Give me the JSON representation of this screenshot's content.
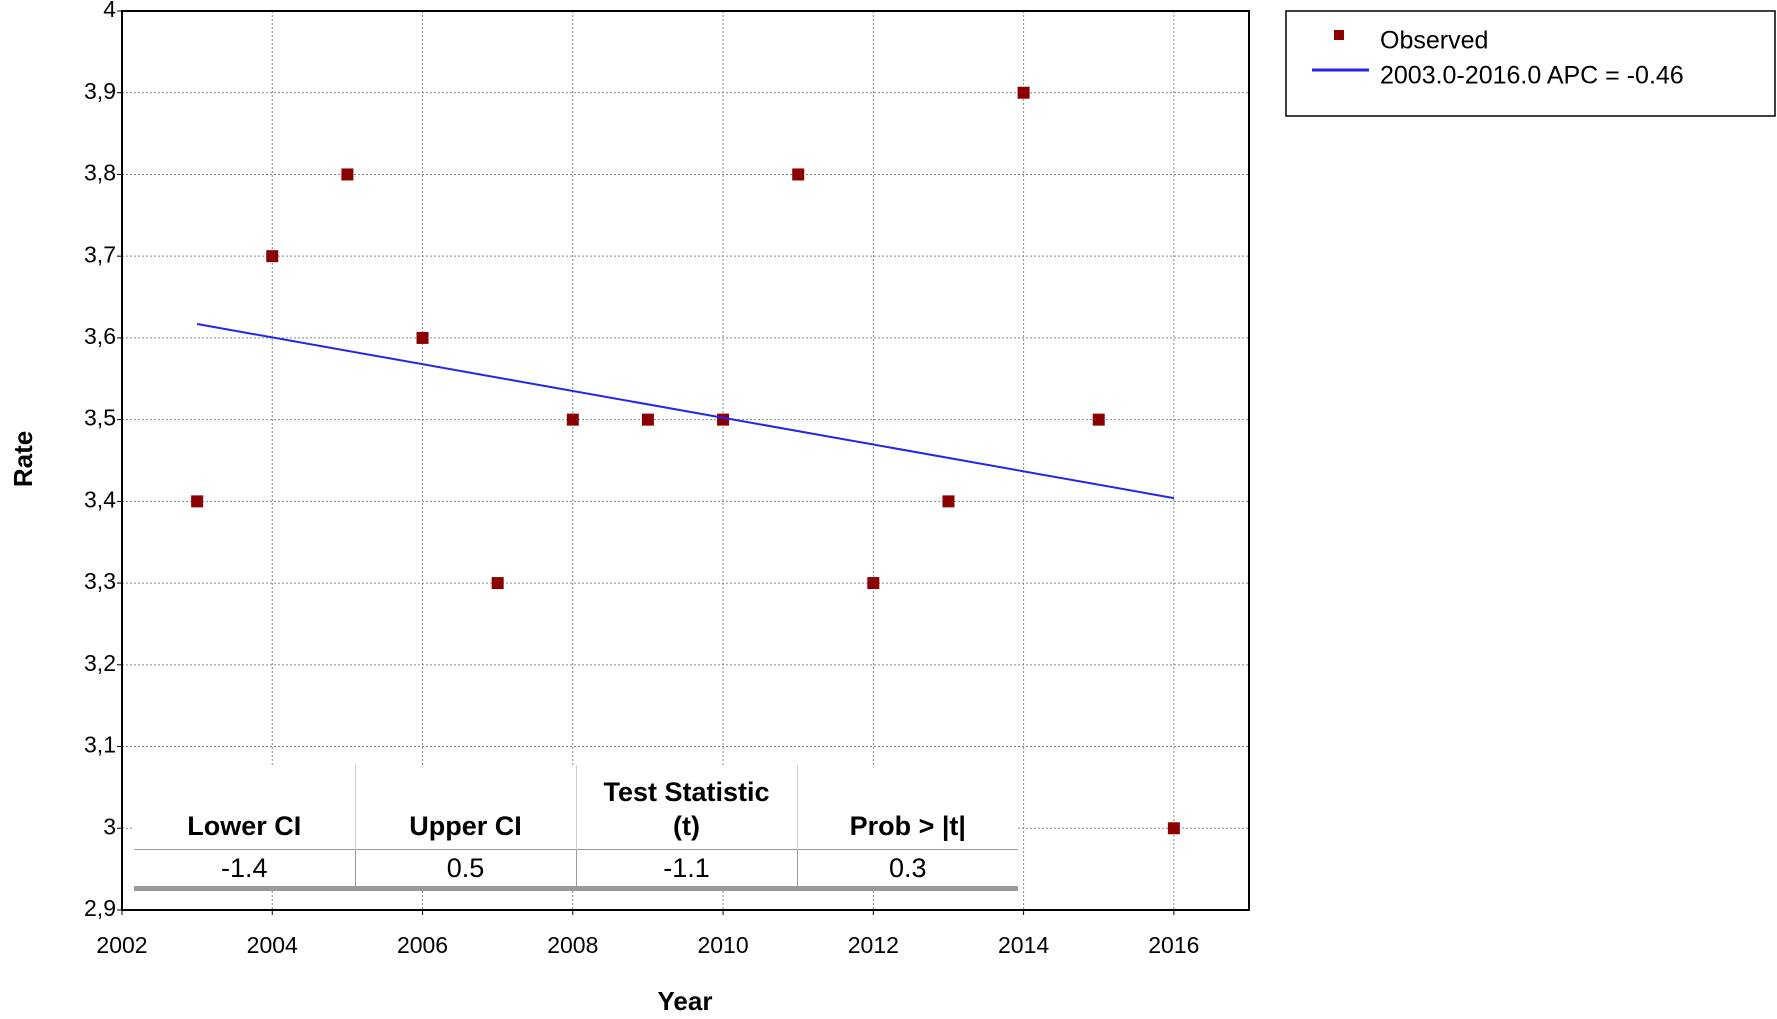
{
  "chart_data": {
    "type": "scatter",
    "x_label": "Year",
    "y_label": "Rate",
    "xlim": [
      2002,
      2017
    ],
    "xticks": [
      2002,
      2004,
      2006,
      2008,
      2010,
      2012,
      2014,
      2016
    ],
    "ylim": [
      2.9,
      4
    ],
    "yticks": [
      {
        "value": 2.9,
        "label": "2,9"
      },
      3,
      {
        "value": 3.1,
        "label": "3,1"
      },
      {
        "value": 3.2,
        "label": "3,2"
      },
      {
        "value": 3.3,
        "label": "3,3"
      },
      {
        "value": 3.4,
        "label": "3,4"
      },
      {
        "value": 3.5,
        "label": "3,5"
      },
      {
        "value": 3.6,
        "label": "3,6"
      },
      {
        "value": 3.7,
        "label": "3,7"
      },
      {
        "value": 3.8,
        "label": "3,8"
      },
      {
        "value": 3.9,
        "label": "3,9"
      },
      4
    ],
    "grid": true,
    "legend": "outside-right",
    "series": [
      {
        "name": "Observed",
        "type": "scatter",
        "color": "#8b0000",
        "x": [
          2003,
          2004,
          2005,
          2006,
          2007,
          2008,
          2009,
          2010,
          2011,
          2012,
          2013,
          2014,
          2015,
          2016
        ],
        "values": [
          3.4,
          3.7,
          3.8,
          3.6,
          3.3,
          3.5,
          3.5,
          3.5,
          3.8,
          3.3,
          3.4,
          3.9,
          3.5,
          3.0
        ]
      },
      {
        "name": "2003.0-2016.0 APC  = -0.46",
        "type": "line",
        "color": "#2424f0",
        "x": [
          2003,
          2016
        ],
        "values": [
          3.617,
          3.404
        ]
      }
    ],
    "stats_table": {
      "columns": [
        "Lower CI",
        "Upper CI",
        "Test Statistic (t)",
        "Prob > |t|"
      ],
      "rows": [
        [
          -1.4,
          0.5,
          -1.1,
          0.3
        ]
      ]
    }
  }
}
